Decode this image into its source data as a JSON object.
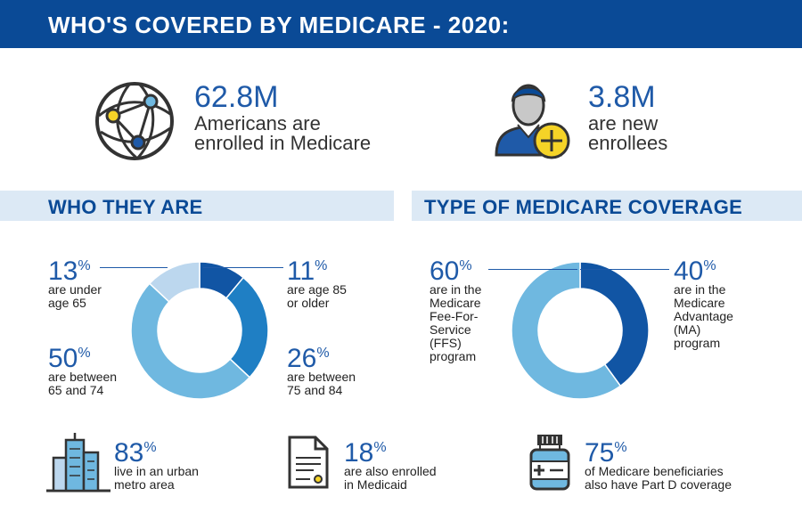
{
  "header": {
    "title": "WHO'S COVERED BY MEDICARE - 2020:"
  },
  "colors": {
    "navy": "#0a4a96",
    "blue_dark": "#1155a4",
    "blue_mid": "#1f7fc4",
    "blue_light": "#6fb8e0",
    "blue_pale": "#bcd7ee",
    "yellow": "#f5d327"
  },
  "stats": {
    "enrolled": {
      "value": "62.8M",
      "line1": "Americans are",
      "line2": "enrolled in Medicare",
      "icon": "globe-network-icon"
    },
    "new": {
      "value": "3.8M",
      "line1": "are new",
      "line2": "enrollees",
      "icon": "person-plus-icon"
    }
  },
  "who": {
    "title": "WHO THEY ARE",
    "segments": [
      {
        "value": "11",
        "line1": "are age 85",
        "line2": "or older"
      },
      {
        "value": "26",
        "line1": "are between",
        "line2": "75 and 84"
      },
      {
        "value": "50",
        "line1": "are between",
        "line2": "65 and 74"
      },
      {
        "value": "13",
        "line1": "are under",
        "line2": "age 65"
      }
    ]
  },
  "coverage": {
    "title": "TYPE OF MEDICARE COVERAGE",
    "ma": {
      "value": "40",
      "lines": [
        "are in the",
        "Medicare",
        "Advantage",
        "(MA)",
        "program"
      ]
    },
    "ffs": {
      "value": "60",
      "lines": [
        "are in the",
        "Medicare",
        "Fee-For-",
        "Service",
        "(FFS)",
        "program"
      ]
    }
  },
  "chart_data": [
    {
      "type": "pie",
      "categories": [
        "are age 85 or older",
        "are between 75 and 84",
        "are between 65 and 74",
        "are under age 65"
      ],
      "values": [
        11,
        26,
        50,
        13
      ]
    },
    {
      "type": "pie",
      "categories": [
        "Medicare Advantage (MA)",
        "Medicare Fee-For-Service (FFS)"
      ],
      "values": [
        40,
        60
      ]
    }
  ],
  "bottom": {
    "urban": {
      "value": "83",
      "line1": "live in an urban",
      "line2": "metro area",
      "icon": "city-buildings-icon"
    },
    "medicaid": {
      "value": "18",
      "line1": "are also enrolled",
      "line2": "in Medicaid",
      "icon": "document-icon"
    },
    "partd": {
      "value": "75",
      "line1": "of Medicare beneficiaries",
      "line2": "also have Part D coverage",
      "icon": "medicine-bottle-icon"
    }
  },
  "pct_symbol": "%"
}
